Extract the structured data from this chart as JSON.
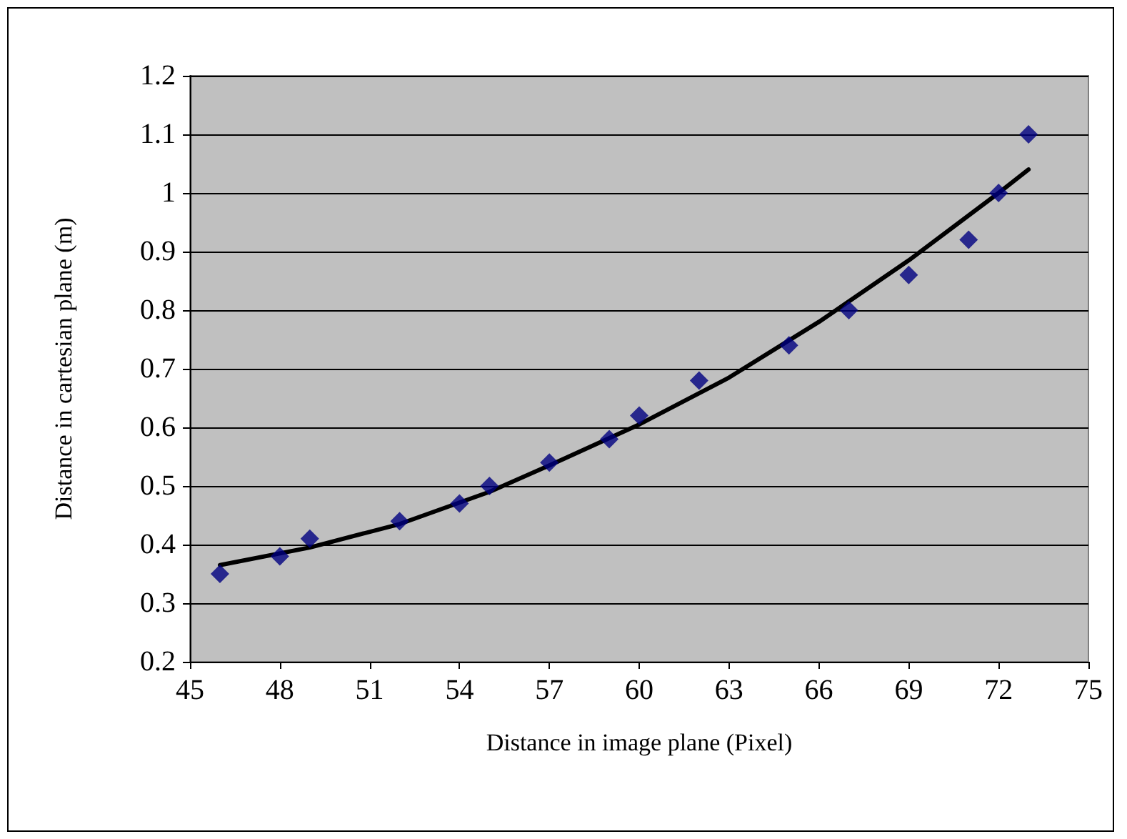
{
  "chart_data": {
    "type": "scatter",
    "xlabel": "Distance in image plane (Pixel)",
    "ylabel": "Distance in cartesian plane (m)",
    "xlim": [
      45,
      75
    ],
    "xticks": [
      45,
      48,
      51,
      54,
      57,
      60,
      63,
      66,
      69,
      72,
      75
    ],
    "ylim": [
      0.2,
      1.2
    ],
    "yticks": [
      0.2,
      0.3,
      0.4,
      0.5,
      0.6,
      0.7,
      0.8,
      0.9,
      1,
      1.1,
      1.2
    ],
    "grid": "y",
    "series": [
      {
        "color": "#000080",
        "marker": "diamond",
        "x": [
          46,
          48,
          49,
          52,
          54,
          55,
          57,
          59,
          60,
          62,
          65,
          67,
          69,
          71,
          72,
          73
        ],
        "values": [
          0.35,
          0.38,
          0.41,
          0.44,
          0.47,
          0.5,
          0.54,
          0.58,
          0.62,
          0.68,
          0.74,
          0.8,
          0.86,
          0.92,
          1.0,
          1.1
        ]
      },
      {
        "type": "line",
        "color": "#000000",
        "marker": "none",
        "line_style": "solid",
        "x": [
          46,
          49,
          52,
          55,
          57,
          60,
          63,
          66,
          69,
          72,
          73
        ],
        "values": [
          0.365,
          0.395,
          0.435,
          0.49,
          0.535,
          0.605,
          0.685,
          0.78,
          0.885,
          1.0,
          1.04
        ]
      }
    ]
  }
}
